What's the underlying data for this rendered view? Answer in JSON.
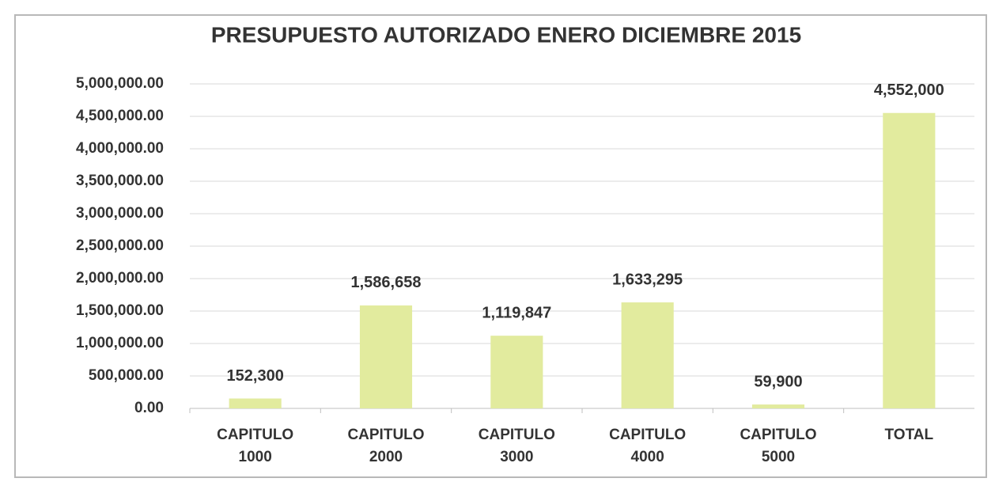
{
  "chart_data": {
    "type": "bar",
    "title": "PRESUPUESTO AUTORIZADO ENERO DICIEMBRE 2015",
    "categories": [
      "CAPITULO 1000",
      "CAPITULO 2000",
      "CAPITULO 3000",
      "CAPITULO 4000",
      "CAPITULO 5000",
      "TOTAL"
    ],
    "values": [
      152300,
      1586658,
      1119847,
      1633295,
      59900,
      4552000
    ],
    "value_labels": [
      "152,300",
      "1,586,658",
      "1,119,847",
      "1,633,295",
      "59,900",
      "4,552,000"
    ],
    "color": "#e2eb9e",
    "ylim": [
      0,
      5000000
    ],
    "yticks": [
      {
        "value": 0,
        "label": "0.00"
      },
      {
        "value": 500000,
        "label": "500,000.00"
      },
      {
        "value": 1000000,
        "label": "1,000,000.00"
      },
      {
        "value": 1500000,
        "label": "1,500,000.00"
      },
      {
        "value": 2000000,
        "label": "2,000,000.00"
      },
      {
        "value": 2500000,
        "label": "2,500,000.00"
      },
      {
        "value": 3000000,
        "label": "3,000,000.00"
      },
      {
        "value": 3500000,
        "label": "3,500,000.00"
      },
      {
        "value": 4000000,
        "label": "4,000,000.00"
      },
      {
        "value": 4500000,
        "label": "4,500,000.00"
      },
      {
        "value": 5000000,
        "label": "5,000,000.00"
      }
    ],
    "grid": true
  }
}
